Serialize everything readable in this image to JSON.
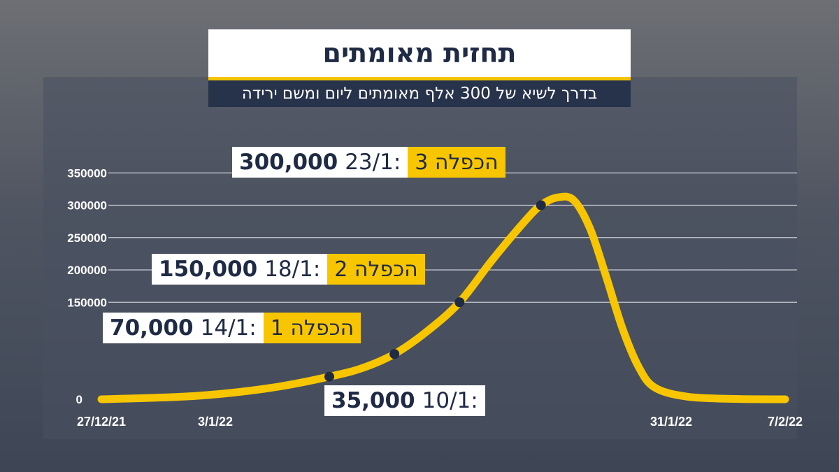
{
  "title": "תחזית מאומתים",
  "subtitle": "בדרך לשיא של 300 אלף מאומתים ליום ומשם ירידה",
  "colors": {
    "line": "#f7c600",
    "label_yellow": "#f7c600",
    "label_white": "#ffffff",
    "text_dark": "#1f2a44",
    "marker": "#1f2a44",
    "grid": "#c9ccd3"
  },
  "chart_data": {
    "type": "line",
    "y_ticks": [
      "350000",
      "300000",
      "250000",
      "200000",
      "150000",
      "0"
    ],
    "y_tick_values": [
      350000,
      300000,
      250000,
      200000,
      150000,
      0
    ],
    "x_tick_labels": [
      {
        "label": "27/12/21",
        "date": "2021-12-27"
      },
      {
        "label": "3/1/22",
        "date": "2022-01-03"
      },
      {
        "label": "31/1/22",
        "date": "2022-01-31"
      },
      {
        "label": "7/2/22",
        "date": "2022-02-07"
      }
    ],
    "grid": true,
    "series": [
      {
        "points": [
          {
            "date": "2021-12-27",
            "value": 0
          },
          {
            "date": "2022-01-01",
            "value": 4000
          },
          {
            "date": "2022-01-04",
            "value": 10000
          },
          {
            "date": "2022-01-07",
            "value": 20000
          },
          {
            "date": "2022-01-10",
            "value": 35000
          },
          {
            "date": "2022-01-12",
            "value": 48000
          },
          {
            "date": "2022-01-14",
            "value": 70000
          },
          {
            "date": "2022-01-16",
            "value": 105000
          },
          {
            "date": "2022-01-18",
            "value": 150000
          },
          {
            "date": "2022-01-20",
            "value": 215000
          },
          {
            "date": "2022-01-22",
            "value": 275000
          },
          {
            "date": "2022-01-23",
            "value": 300000
          },
          {
            "date": "2022-01-24",
            "value": 312000
          },
          {
            "date": "2022-01-25",
            "value": 308000
          },
          {
            "date": "2022-01-26",
            "value": 265000
          },
          {
            "date": "2022-01-27",
            "value": 190000
          },
          {
            "date": "2022-01-28",
            "value": 110000
          },
          {
            "date": "2022-01-29",
            "value": 50000
          },
          {
            "date": "2022-01-30",
            "value": 18000
          },
          {
            "date": "2022-02-01",
            "value": 4000
          },
          {
            "date": "2022-02-04",
            "value": 500
          },
          {
            "date": "2022-02-07",
            "value": 0
          }
        ]
      }
    ],
    "annotations": [
      {
        "date": "2022-01-10",
        "value": 35000,
        "date_label": "10/1:",
        "value_label": "35,000",
        "tag": ""
      },
      {
        "date": "2022-01-14",
        "value": 70000,
        "date_label": "14/1:",
        "value_label": "70,000",
        "tag": "הכפלה 1"
      },
      {
        "date": "2022-01-18",
        "value": 150000,
        "date_label": "18/1:",
        "value_label": "150,000",
        "tag": "הכפלה 2"
      },
      {
        "date": "2022-01-23",
        "value": 300000,
        "date_label": "23/1:",
        "value_label": "300,000",
        "tag": "הכפלה 3"
      }
    ]
  }
}
